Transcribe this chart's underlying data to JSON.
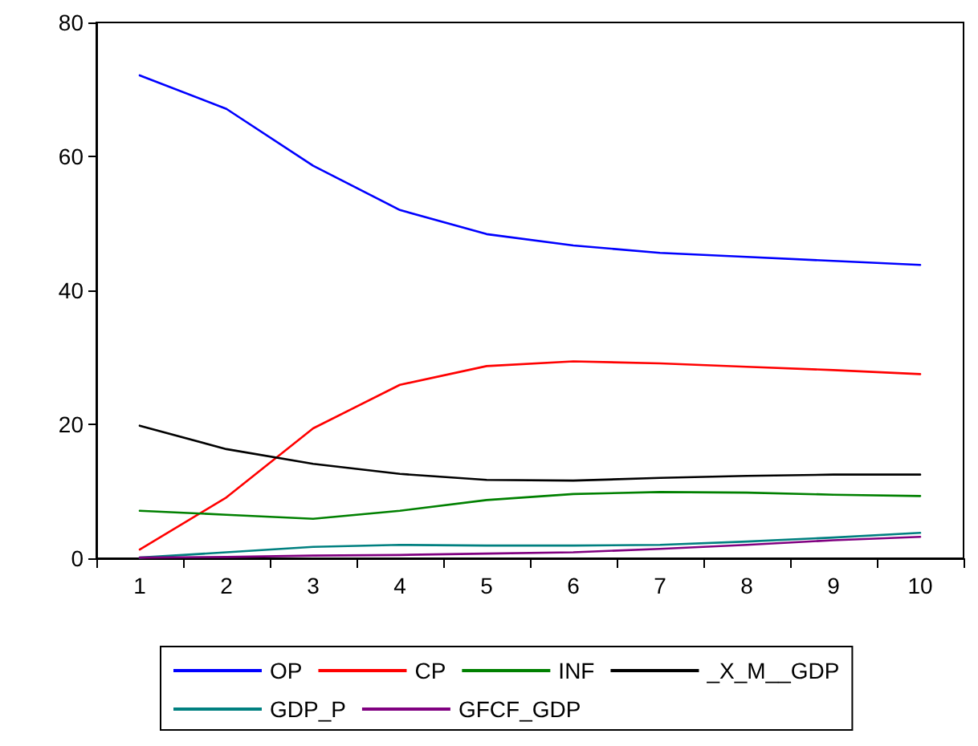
{
  "chart_data": {
    "type": "line",
    "categories": [
      "1",
      "2",
      "3",
      "4",
      "5",
      "6",
      "7",
      "8",
      "9",
      "10"
    ],
    "ylim": [
      0,
      80
    ],
    "yticks": [
      0,
      20,
      40,
      60,
      80
    ],
    "grid": false,
    "legend": "bottom",
    "marker": "none",
    "line_style": "solid",
    "series": [
      {
        "name": "OP",
        "color": "#0000ff",
        "values": [
          72.1,
          67.1,
          58.6,
          52.0,
          48.4,
          46.7,
          45.6,
          45.0,
          44.4,
          43.8
        ]
      },
      {
        "name": "CP",
        "color": "#ff0000",
        "values": [
          1.3,
          9.1,
          19.4,
          25.9,
          28.7,
          29.4,
          29.1,
          28.6,
          28.1,
          27.5
        ]
      },
      {
        "name": "INF",
        "color": "#008000",
        "values": [
          7.1,
          6.5,
          5.9,
          7.1,
          8.7,
          9.6,
          9.9,
          9.8,
          9.5,
          9.3
        ]
      },
      {
        "name": "_X_M__GDP",
        "color": "#000000",
        "values": [
          19.8,
          16.3,
          14.1,
          12.6,
          11.7,
          11.6,
          12.0,
          12.3,
          12.5,
          12.5
        ]
      },
      {
        "name": "GDP_P",
        "color": "#008080",
        "values": [
          0.1,
          0.9,
          1.7,
          2.0,
          1.9,
          1.9,
          2.0,
          2.5,
          3.1,
          3.8
        ]
      },
      {
        "name": "GFCF_GDP",
        "color": "#800080",
        "values": [
          0.1,
          0.2,
          0.4,
          0.5,
          0.7,
          0.9,
          1.4,
          2.0,
          2.7,
          3.2
        ]
      }
    ]
  }
}
